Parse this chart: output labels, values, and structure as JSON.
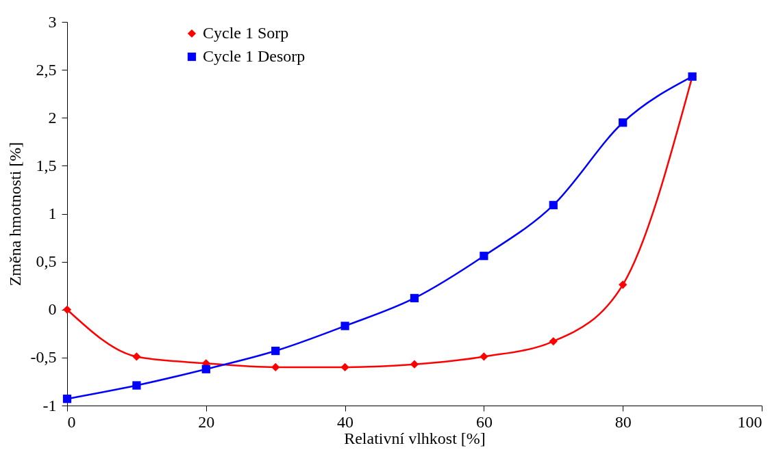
{
  "chart_data": {
    "type": "line",
    "xlabel": "Relativní vlhkost [%]",
    "ylabel": "Změna hmotnosti [%]",
    "x": [
      0,
      10,
      20,
      30,
      40,
      50,
      60,
      70,
      80,
      90
    ],
    "series": [
      {
        "name": "Cycle 1 Sorp",
        "color": "#ff0000",
        "marker": "diamond",
        "values": [
          0,
          -0.49,
          -0.56,
          -0.6,
          -0.6,
          -0.57,
          -0.49,
          -0.33,
          0.26,
          2.43
        ]
      },
      {
        "name": "Cycle 1 Desorp",
        "color": "#0000ff",
        "marker": "square",
        "values": [
          -0.93,
          -0.79,
          -0.62,
          -0.43,
          -0.17,
          0.12,
          0.56,
          1.09,
          1.95,
          2.43
        ]
      }
    ],
    "xlim": [
      0,
      100
    ],
    "xticks": [
      0,
      20,
      40,
      60,
      80,
      100
    ],
    "ylim": [
      -1,
      3
    ],
    "yticks": [
      {
        "value": -1,
        "label": "-1"
      },
      {
        "value": -0.5,
        "label": "-0,5"
      },
      0,
      {
        "value": 0.5,
        "label": "0,5"
      },
      1,
      {
        "value": 1.5,
        "label": "1,5"
      },
      2,
      {
        "value": 2.5,
        "label": "2,5"
      },
      3
    ],
    "grid": false,
    "legend": "top left",
    "line_style": "solid"
  }
}
